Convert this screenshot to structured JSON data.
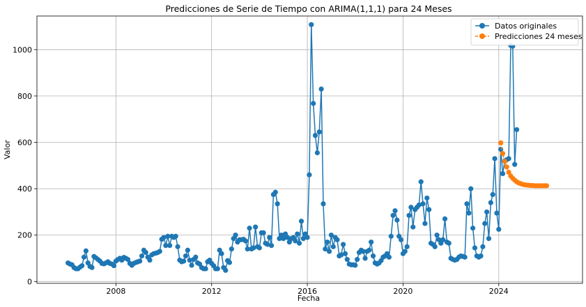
{
  "chart_data": {
    "type": "line",
    "title": "Predicciones de Serie de Tiempo con ARIMA(1,1,1) para 24 Meses",
    "xlabel": "Fecha",
    "ylabel": "Valor",
    "xlim": [
      2004.7,
      2027.5
    ],
    "ylim": [
      -8,
      1145
    ],
    "xticks": [
      2008,
      2012,
      2016,
      2020,
      2024
    ],
    "yticks": [
      0,
      200,
      400,
      600,
      800,
      1000
    ],
    "grid": true,
    "legend": "top-right",
    "series": [
      {
        "name": "Datos originales",
        "color": "#1f77b4",
        "style": "solid",
        "marker": "circle",
        "x_start": 2006.0,
        "x_step": 0.0833333,
        "values": [
          80,
          75,
          72,
          60,
          55,
          55,
          62,
          68,
          105,
          132,
          80,
          65,
          60,
          108,
          102,
          95,
          88,
          78,
          76,
          80,
          85,
          78,
          75,
          68,
          88,
          95,
          100,
          92,
          104,
          100,
          95,
          78,
          70,
          78,
          82,
          85,
          88,
          110,
          135,
          125,
          105,
          92,
          115,
          120,
          122,
          125,
          130,
          182,
          190,
          155,
          195,
          155,
          195,
          190,
          195,
          150,
          92,
          85,
          88,
          110,
          135,
          92,
          70,
          95,
          105,
          80,
          75,
          60,
          55,
          55,
          85,
          92,
          78,
          68,
          55,
          55,
          135,
          120,
          60,
          48,
          90,
          82,
          140,
          185,
          200,
          170,
          180,
          180,
          182,
          175,
          140,
          230,
          140,
          145,
          235,
          150,
          145,
          210,
          210,
          165,
          160,
          190,
          155,
          375,
          385,
          335,
          185,
          200,
          185,
          205,
          190,
          170,
          185,
          190,
          175,
          205,
          165,
          260,
          185,
          205,
          190,
          460,
          1108,
          768,
          630,
          555,
          645,
          830,
          335,
          140,
          170,
          130,
          200,
          150,
          190,
          180,
          110,
          115,
          160,
          120,
          95,
          75,
          72,
          72,
          70,
          95,
          125,
          135,
          130,
          100,
          130,
          135,
          170,
          110,
          80,
          75,
          80,
          90,
          105,
          110,
          120,
          105,
          195,
          285,
          305,
          265,
          195,
          180,
          120,
          130,
          150,
          285,
          320,
          235,
          310,
          320,
          330,
          430,
          335,
          250,
          360,
          310,
          165,
          160,
          150,
          200,
          180,
          165,
          180,
          270,
          170,
          165,
          100,
          95,
          92,
          95,
          105,
          110,
          108,
          105,
          335,
          295,
          400,
          230,
          145,
          110,
          105,
          110,
          150,
          250,
          300,
          185,
          340,
          375,
          530,
          295,
          225,
          570,
          465,
          520,
          525,
          530,
          1018,
          1015,
          505,
          655
        ]
      },
      {
        "name": "Predicciones 24 meses",
        "color": "#ff7f0e",
        "style": "dashed",
        "marker": "circle",
        "x_start": 2024.0833,
        "x_step": 0.0833333,
        "values": [
          598,
          552,
          518,
          494,
          471,
          455,
          445,
          437,
          430,
          425,
          422,
          419,
          417,
          416,
          415,
          414,
          414,
          413,
          413,
          413,
          413,
          413,
          413,
          413
        ]
      }
    ]
  }
}
